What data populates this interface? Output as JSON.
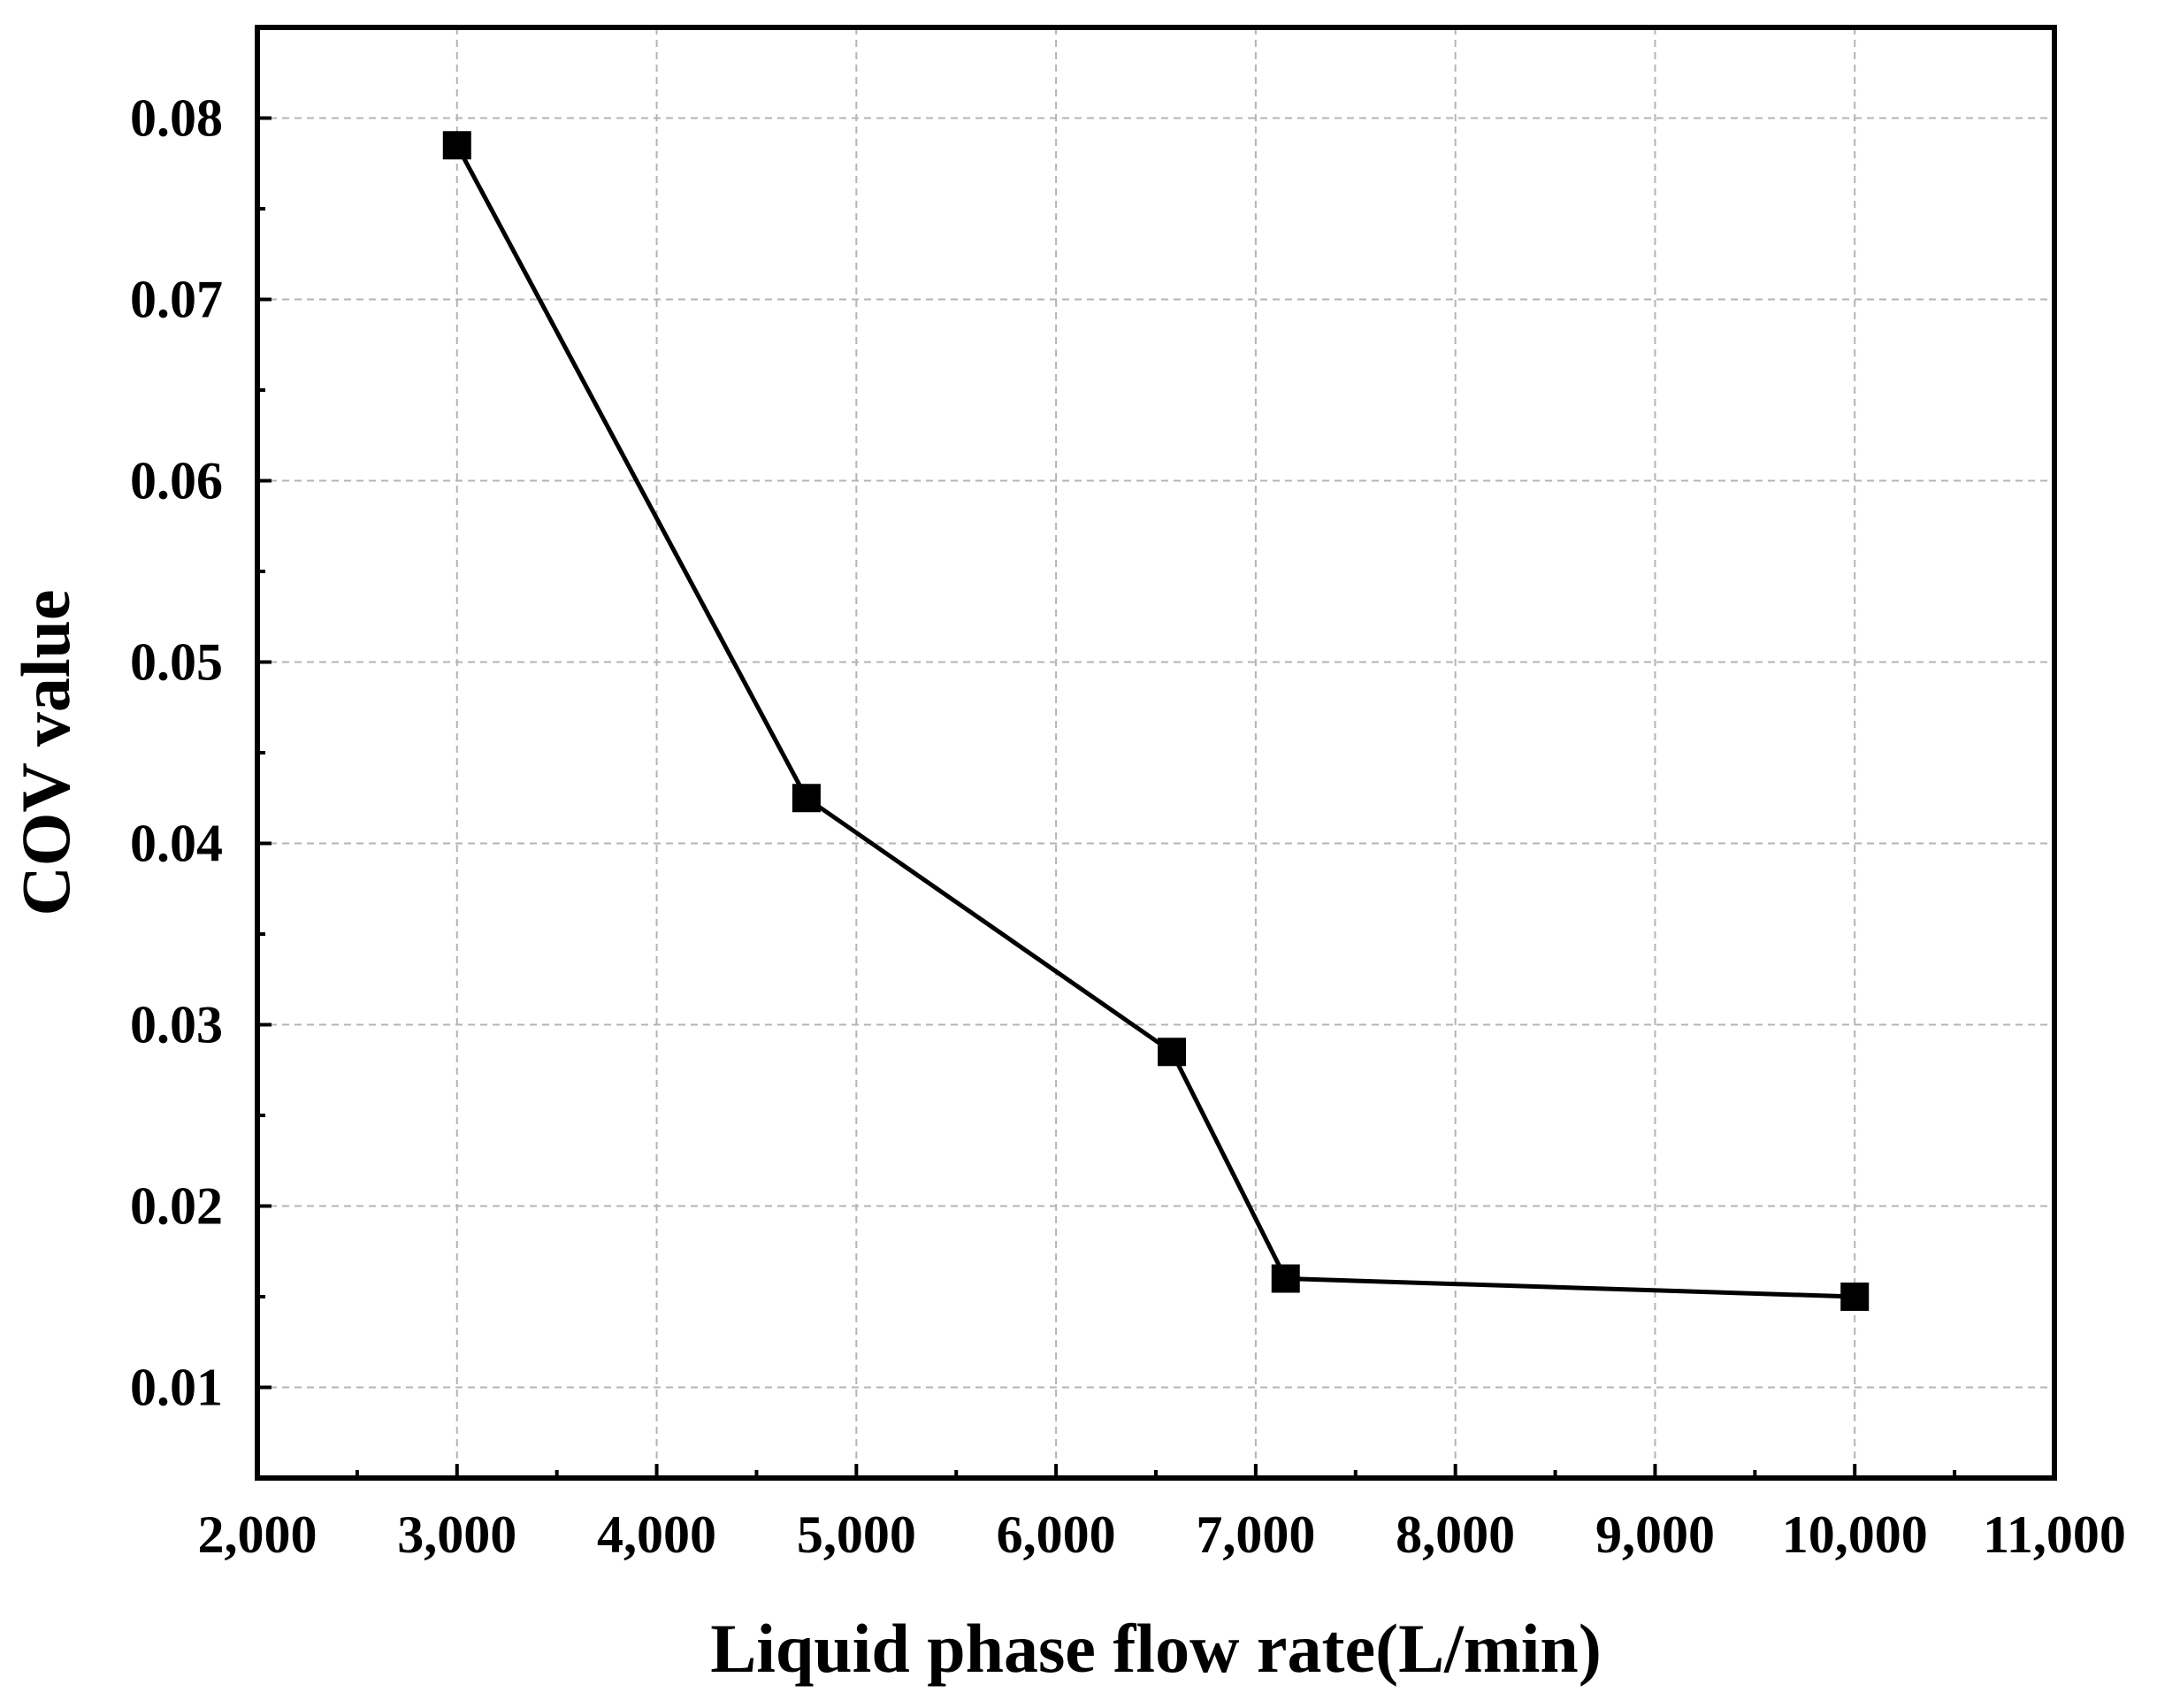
{
  "chart_data": {
    "type": "line",
    "title": "",
    "xlabel": "Liquid phase flow rate(L/min)",
    "ylabel": "COV value",
    "xlim": [
      2000,
      11000
    ],
    "ylim": [
      0.005,
      0.085
    ],
    "x_ticks": [
      2000,
      3000,
      4000,
      5000,
      6000,
      7000,
      8000,
      9000,
      10000,
      11000
    ],
    "x_tick_labels": [
      "2,000",
      "3,000",
      "4,000",
      "5,000",
      "6,000",
      "7,000",
      "8,000",
      "9,000",
      "10,000",
      "11,000"
    ],
    "y_ticks": [
      0.01,
      0.02,
      0.03,
      0.04,
      0.05,
      0.06,
      0.07,
      0.08
    ],
    "y_tick_labels": [
      "0.01",
      "0.02",
      "0.03",
      "0.04",
      "0.05",
      "0.06",
      "0.07",
      "0.08"
    ],
    "grid": true,
    "marker": "square",
    "series": [
      {
        "name": "COV value",
        "color": "#000000",
        "x": [
          3000,
          4750,
          6580,
          7150,
          10000
        ],
        "y": [
          0.0785,
          0.0425,
          0.0285,
          0.016,
          0.015
        ]
      }
    ]
  }
}
